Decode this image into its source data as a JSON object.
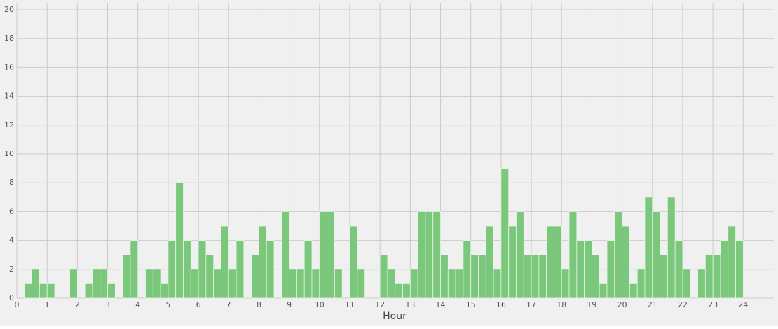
{
  "chart_data": {
    "type": "histogram",
    "bins": [
      0,
      0.25,
      0.5,
      0.75,
      1,
      1.25,
      1.5,
      1.75,
      2,
      2.25,
      2.5,
      2.75,
      3,
      3.25,
      3.5,
      3.75,
      4,
      4.25,
      4.5,
      4.75,
      5,
      5.25,
      5.5,
      5.75,
      6,
      6.25,
      6.5,
      6.75,
      7,
      7.25,
      7.5,
      7.75,
      8,
      8.25,
      8.5,
      8.75,
      9,
      9.25,
      9.5,
      9.75,
      10,
      10.25,
      10.5,
      10.75,
      11,
      11.25,
      11.5,
      11.75,
      12,
      12.25,
      12.5,
      12.75,
      13,
      13.25,
      13.5,
      13.75,
      14,
      14.25,
      14.5,
      14.75,
      15,
      15.25,
      15.5,
      15.75,
      16,
      16.25,
      16.5,
      16.75,
      17,
      17.25,
      17.5,
      17.75,
      18,
      18.25,
      18.5,
      18.75,
      19,
      19.25,
      19.5,
      19.75,
      20,
      20.25,
      20.5,
      20.75,
      21,
      21.25,
      21.5,
      21.75,
      22,
      22.25,
      22.5,
      22.75,
      23,
      23.25,
      23.5,
      23.75,
      24
    ],
    "counts": [
      0,
      1,
      2,
      1,
      1,
      0,
      0,
      2,
      0,
      1,
      2,
      2,
      1,
      0,
      3,
      4,
      0,
      2,
      2,
      1,
      4,
      8,
      4,
      2,
      4,
      3,
      2,
      5,
      2,
      4,
      0,
      3,
      5,
      4,
      0,
      6,
      2,
      2,
      4,
      2,
      6,
      6,
      2,
      0,
      5,
      2,
      0,
      0,
      3,
      2,
      1,
      1,
      2,
      6,
      6,
      6,
      3,
      2,
      2,
      4,
      3,
      3,
      5,
      2,
      9,
      5,
      6,
      3,
      3,
      3,
      5,
      5,
      2,
      6,
      4,
      4,
      3,
      1,
      4,
      6,
      5,
      1,
      2,
      7,
      6,
      3,
      7,
      4,
      2,
      0,
      2,
      3,
      3,
      4,
      5,
      4
    ],
    "color": "#7bc77b",
    "xlabel": "Hour",
    "xlim": [
      0,
      25
    ],
    "xticks": [
      0,
      1,
      2,
      3,
      4,
      5,
      6,
      7,
      8,
      9,
      10,
      11,
      12,
      13,
      14,
      15,
      16,
      17,
      18,
      19,
      20,
      21,
      22,
      23,
      24
    ],
    "ylim": [
      0,
      20
    ],
    "yticks": [
      0,
      2,
      4,
      6,
      8,
      10,
      12,
      14,
      16,
      18,
      20
    ],
    "grid": true
  }
}
